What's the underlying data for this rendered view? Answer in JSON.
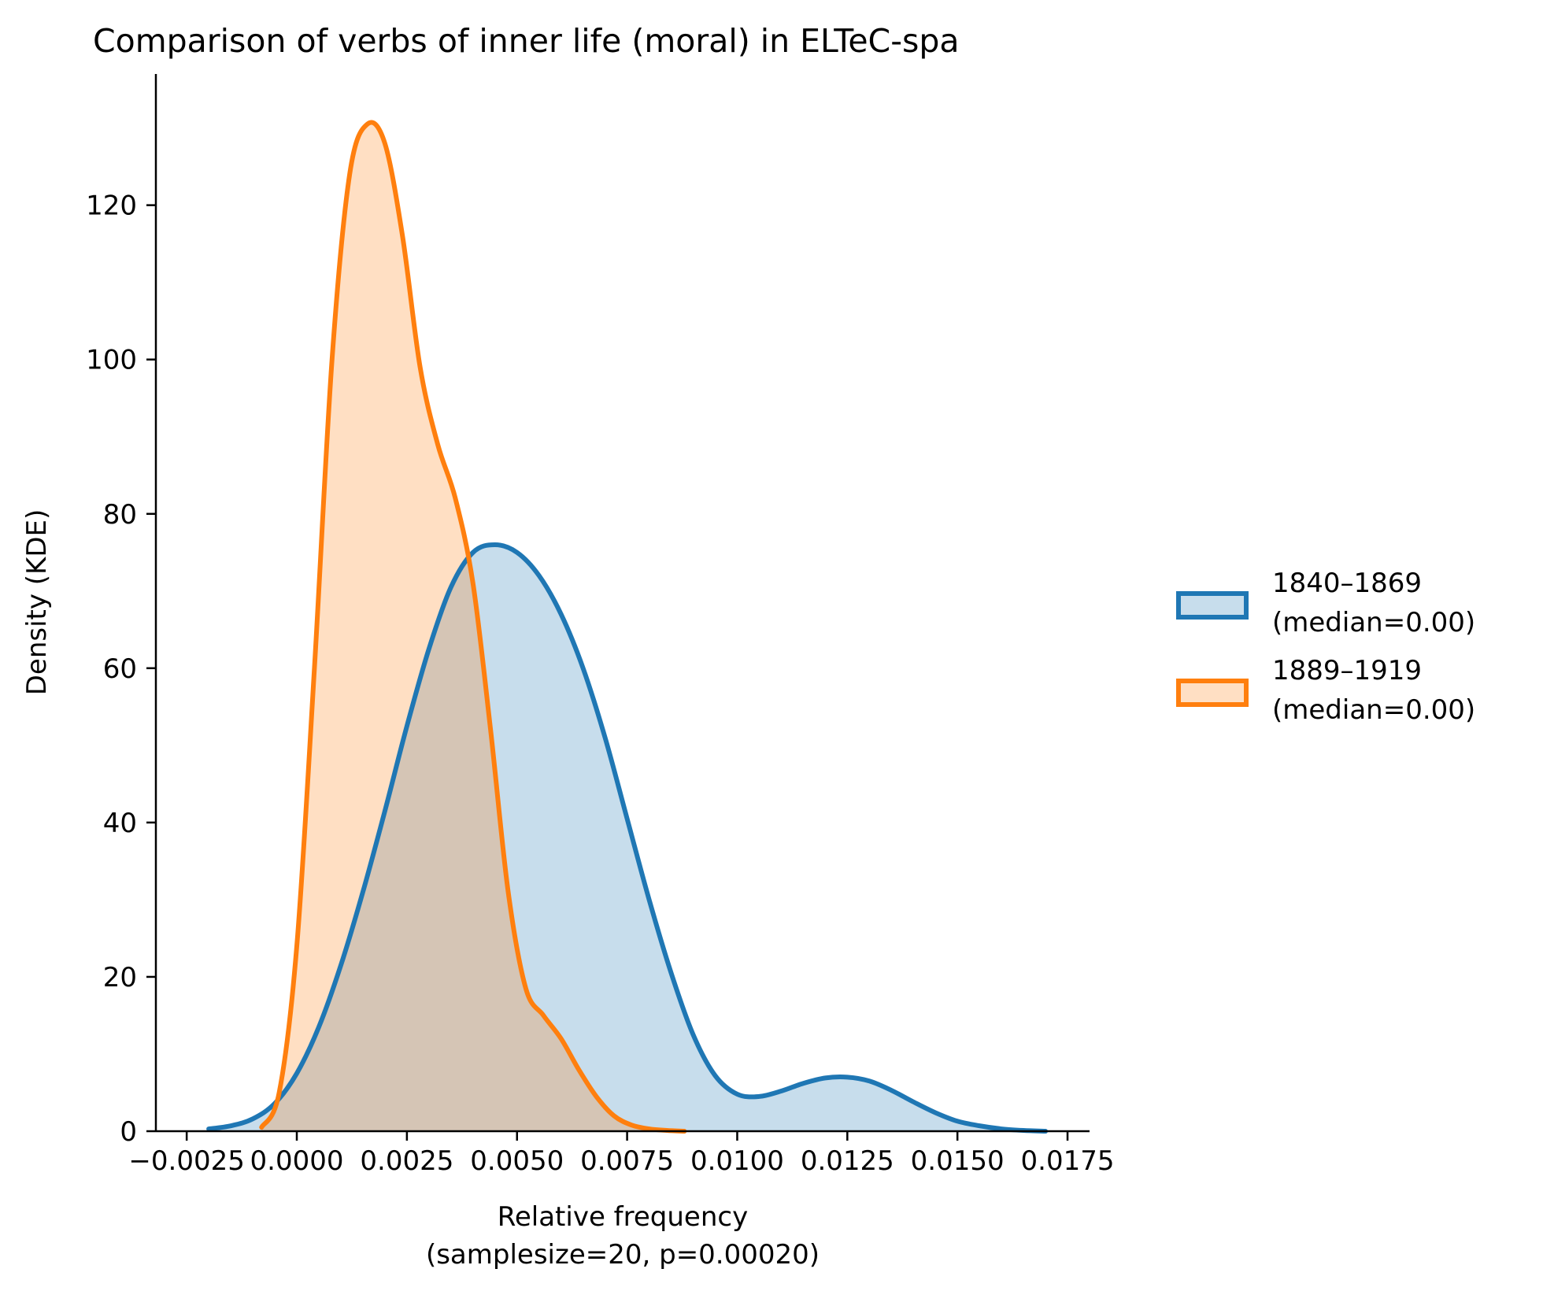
{
  "chart_data": {
    "type": "area",
    "title": "Comparison of verbs of inner life (moral) in ELTeC-spa",
    "xlabel": "Relative frequency",
    "xlabel_sub": "(samplesize=20, p=0.00020)",
    "ylabel": "Density (KDE)",
    "xlim": [
      -0.0032,
      0.018
    ],
    "ylim": [
      0,
      137
    ],
    "xticks": [
      -0.0025,
      0.0,
      0.0025,
      0.005,
      0.0075,
      0.01,
      0.0125,
      0.015,
      0.0175
    ],
    "xtick_labels": [
      "−0.0025",
      "0.0000",
      "0.0025",
      "0.0050",
      "0.0075",
      "0.0100",
      "0.0125",
      "0.0150",
      "0.0175"
    ],
    "yticks": [
      0,
      20,
      40,
      60,
      80,
      100,
      120
    ],
    "ytick_labels": [
      "0",
      "20",
      "40",
      "60",
      "80",
      "100",
      "120"
    ],
    "grid": false,
    "legend_position": "center-right",
    "series": [
      {
        "name": "1840–1869",
        "name_sub": "(median=0.00)",
        "color": "#1f77b4",
        "fill": "rgba(31,119,180,0.25)",
        "x": [
          -0.002,
          -0.0015,
          -0.001,
          -0.0005,
          0.0,
          0.0005,
          0.001,
          0.0015,
          0.002,
          0.0025,
          0.003,
          0.0035,
          0.004,
          0.0045,
          0.005,
          0.0055,
          0.006,
          0.0065,
          0.007,
          0.0075,
          0.008,
          0.0085,
          0.009,
          0.0095,
          0.01,
          0.0105,
          0.011,
          0.0115,
          0.012,
          0.0125,
          0.013,
          0.0135,
          0.014,
          0.0145,
          0.015,
          0.0155,
          0.016,
          0.0165,
          0.017
        ],
        "y": [
          0.3,
          0.7,
          1.6,
          3.6,
          7.5,
          13.5,
          21.5,
          31.0,
          41.5,
          52.5,
          62.5,
          70.5,
          75.0,
          76.0,
          75.0,
          72.0,
          67.0,
          60.0,
          51.0,
          40.5,
          30.0,
          20.5,
          12.5,
          7.2,
          4.8,
          4.5,
          5.2,
          6.2,
          6.9,
          7.0,
          6.5,
          5.3,
          3.8,
          2.4,
          1.3,
          0.7,
          0.3,
          0.1,
          0.0
        ]
      },
      {
        "name": "1889–1919",
        "name_sub": "(median=0.00)",
        "color": "#ff7f0e",
        "fill": "rgba(255,127,14,0.25)",
        "x": [
          -0.0008,
          -0.0004,
          0.0,
          0.0004,
          0.0008,
          0.0012,
          0.0016,
          0.002,
          0.0024,
          0.0028,
          0.0032,
          0.0036,
          0.004,
          0.0044,
          0.0048,
          0.0052,
          0.0056,
          0.006,
          0.0064,
          0.0068,
          0.0072,
          0.0076,
          0.008,
          0.0084,
          0.0088
        ],
        "y": [
          0.5,
          5.0,
          24.0,
          60.0,
          100.0,
          124.0,
          130.5,
          128.0,
          116.0,
          99.0,
          89.0,
          82.0,
          71.0,
          52.0,
          31.0,
          18.5,
          15.0,
          12.0,
          8.0,
          4.5,
          2.0,
          0.8,
          0.3,
          0.1,
          0.0
        ]
      }
    ]
  }
}
